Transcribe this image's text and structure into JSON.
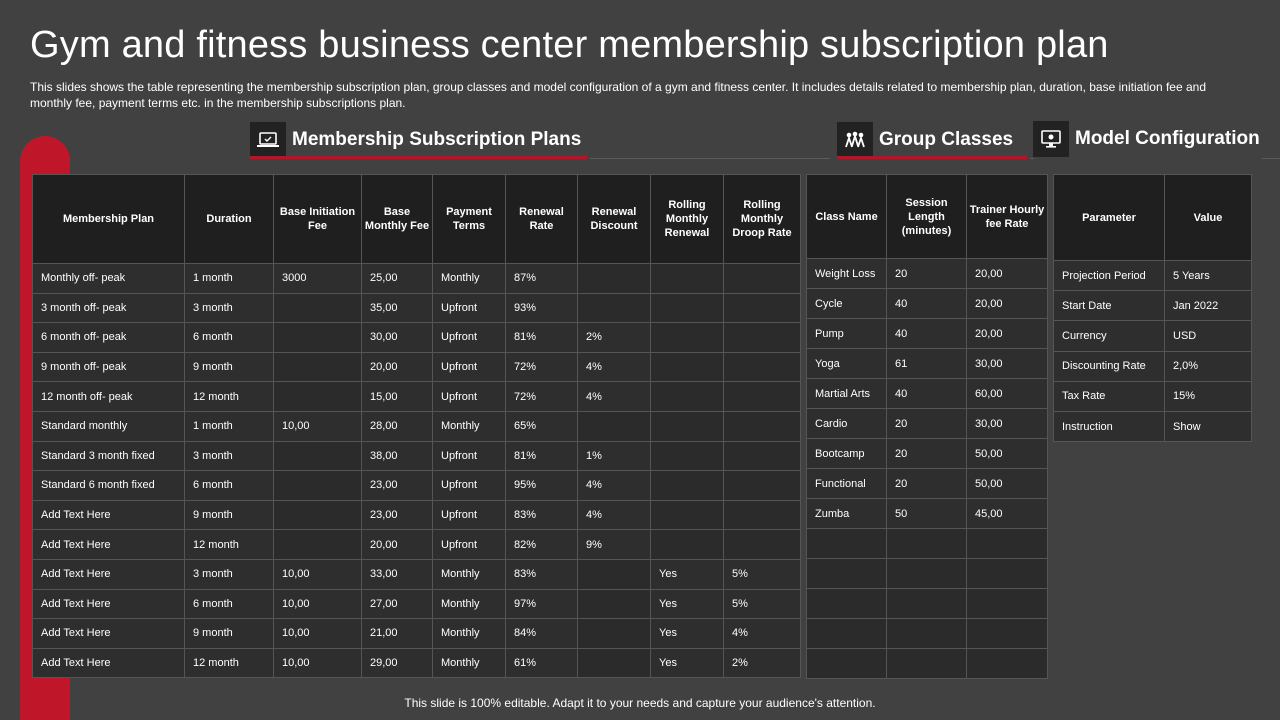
{
  "title": "Gym and fitness business center membership subscription plan",
  "subtitle": "This slides shows the table representing the membership subscription plan, group classes and model configuration  of a gym and fitness center. It includes details related to membership plan, duration, base initiation fee and monthly fee, payment terms etc. in the membership subscriptions plan.",
  "sections": {
    "membership": "Membership Subscription Plans",
    "group": "Group Classes",
    "model": "Model Configuration"
  },
  "membership_table": {
    "headers": [
      "Membership Plan",
      "Duration",
      "Base Initiation Fee",
      "Base Monthly Fee",
      "Payment Terms",
      "Renewal Rate",
      "Renewal Discount",
      "Rolling Monthly Renewal",
      "Rolling Monthly Droop Rate"
    ],
    "rows": [
      [
        "Monthly off- peak",
        "1 month",
        "3000",
        "25,00",
        "Monthly",
        "87%",
        "",
        "",
        ""
      ],
      [
        "3 month off- peak",
        "3 month",
        "",
        "35,00",
        "Upfront",
        "93%",
        "",
        "",
        ""
      ],
      [
        "6 month off- peak",
        "6 month",
        "",
        "30,00",
        "Upfront",
        "81%",
        "2%",
        "",
        ""
      ],
      [
        "9 month off- peak",
        "9 month",
        "",
        "20,00",
        "Upfront",
        "72%",
        "4%",
        "",
        ""
      ],
      [
        "12 month off- peak",
        "12 month",
        "",
        "15,00",
        "Upfront",
        "72%",
        "4%",
        "",
        ""
      ],
      [
        "Standard monthly",
        "1 month",
        "10,00",
        "28,00",
        "Monthly",
        "65%",
        "",
        "",
        ""
      ],
      [
        "Standard 3 month fixed",
        "3 month",
        "",
        "38,00",
        "Upfront",
        "81%",
        "1%",
        "",
        ""
      ],
      [
        "Standard 6 month fixed",
        "6 month",
        "",
        "23,00",
        "Upfront",
        "95%",
        "4%",
        "",
        ""
      ],
      [
        "Add Text Here",
        "9 month",
        "",
        "23,00",
        "Upfront",
        "83%",
        "4%",
        "",
        ""
      ],
      [
        "Add Text Here",
        "12 month",
        "",
        "20,00",
        "Upfront",
        "82%",
        "9%",
        "",
        ""
      ],
      [
        "Add Text Here",
        "3 month",
        "10,00",
        "33,00",
        "Monthly",
        "83%",
        "",
        "Yes",
        "5%"
      ],
      [
        "Add Text Here",
        "6 month",
        "10,00",
        "27,00",
        "Monthly",
        "97%",
        "",
        "Yes",
        "5%"
      ],
      [
        "Add Text Here",
        "9 month",
        "10,00",
        "21,00",
        "Monthly",
        "84%",
        "",
        "Yes",
        "4%"
      ],
      [
        "Add Text Here",
        "12 month",
        "10,00",
        "29,00",
        "Monthly",
        "61%",
        "",
        "Yes",
        "2%"
      ]
    ]
  },
  "group_table": {
    "headers": [
      "Class Name",
      "Session Length (minutes)",
      "Trainer Hourly fee Rate"
    ],
    "rows": [
      [
        "Weight Loss",
        "20",
        "20,00"
      ],
      [
        "Cycle",
        "40",
        "20,00"
      ],
      [
        "Pump",
        "40",
        "20,00"
      ],
      [
        "Yoga",
        "61",
        "30,00"
      ],
      [
        "Martial Arts",
        "40",
        "60,00"
      ],
      [
        "Cardio",
        "20",
        "30,00"
      ],
      [
        "Bootcamp",
        "20",
        "50,00"
      ],
      [
        "Functional",
        "20",
        "50,00"
      ],
      [
        "Zumba",
        "50",
        "45,00"
      ],
      [
        "",
        "",
        ""
      ],
      [
        "",
        "",
        ""
      ],
      [
        "",
        "",
        ""
      ],
      [
        "",
        "",
        ""
      ],
      [
        "",
        "",
        ""
      ]
    ]
  },
  "model_table": {
    "headers": [
      "Parameter",
      "Value"
    ],
    "rows": [
      [
        "Projection Period",
        "5 Years"
      ],
      [
        "Start Date",
        "Jan 2022"
      ],
      [
        "Currency",
        "USD"
      ],
      [
        "Discounting Rate",
        "2,0%"
      ],
      [
        "Tax Rate",
        "15%"
      ],
      [
        "Instruction",
        "Show"
      ]
    ]
  },
  "footer": "This slide is 100% editable. Adapt it to your needs and capture your audience's attention.",
  "colors": {
    "background": "#414141",
    "accent": "#c0162a",
    "header_cell": "#1f1f1f",
    "body_cell": "#2e2e2e"
  }
}
